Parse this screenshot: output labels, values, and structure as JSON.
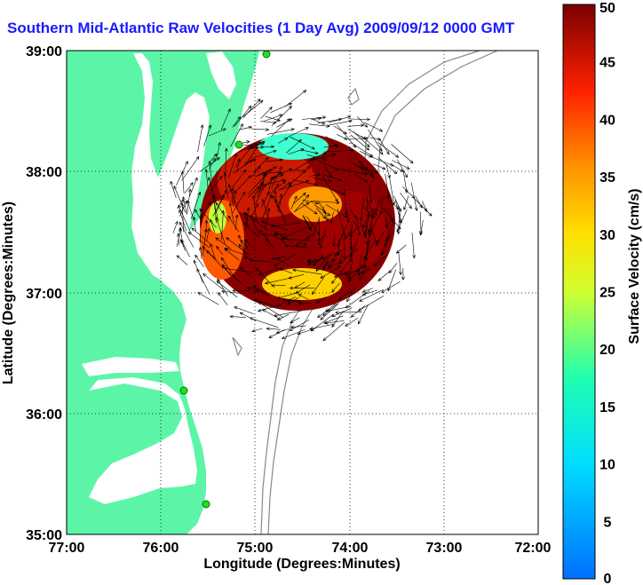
{
  "title": "Southern Mid-Atlantic Raw Velocities (1 Day Avg) 2009/09/12 0000 GMT",
  "xlabel": "Longitude (Degrees:Minutes)",
  "ylabel": "Latitude (Degrees:Minutes)",
  "x_ticks": [
    "77:00",
    "76:00",
    "75:00",
    "74:00",
    "73:00",
    "72:00"
  ],
  "y_ticks": [
    "39:00",
    "38:00",
    "37:00",
    "36:00",
    "35:00"
  ],
  "colorbar": {
    "label": "Surface Velocity (cm/s)",
    "ticks": [
      "50",
      "45",
      "40",
      "35",
      "30",
      "25",
      "20",
      "15",
      "10",
      "5",
      "0"
    ],
    "range": [
      0,
      50
    ]
  },
  "colors": {
    "land": "#5cf5a8",
    "water": "#ffffff",
    "title": "#1a1aff",
    "bathymetry": "#888888",
    "station": "#22dd22"
  },
  "chart_data": {
    "type": "heatmap",
    "title": "Southern Mid-Atlantic Raw Velocities (1 Day Avg) 2009/09/12 0000 GMT",
    "xlabel": "Longitude (Degrees:Minutes)",
    "ylabel": "Latitude (Degrees:Minutes)",
    "xlim": [
      -77,
      -72
    ],
    "ylim": [
      35,
      39
    ],
    "grid": true,
    "colorbar_range": [
      0,
      50
    ],
    "colorbar_label": "Surface Velocity (cm/s)"
  }
}
